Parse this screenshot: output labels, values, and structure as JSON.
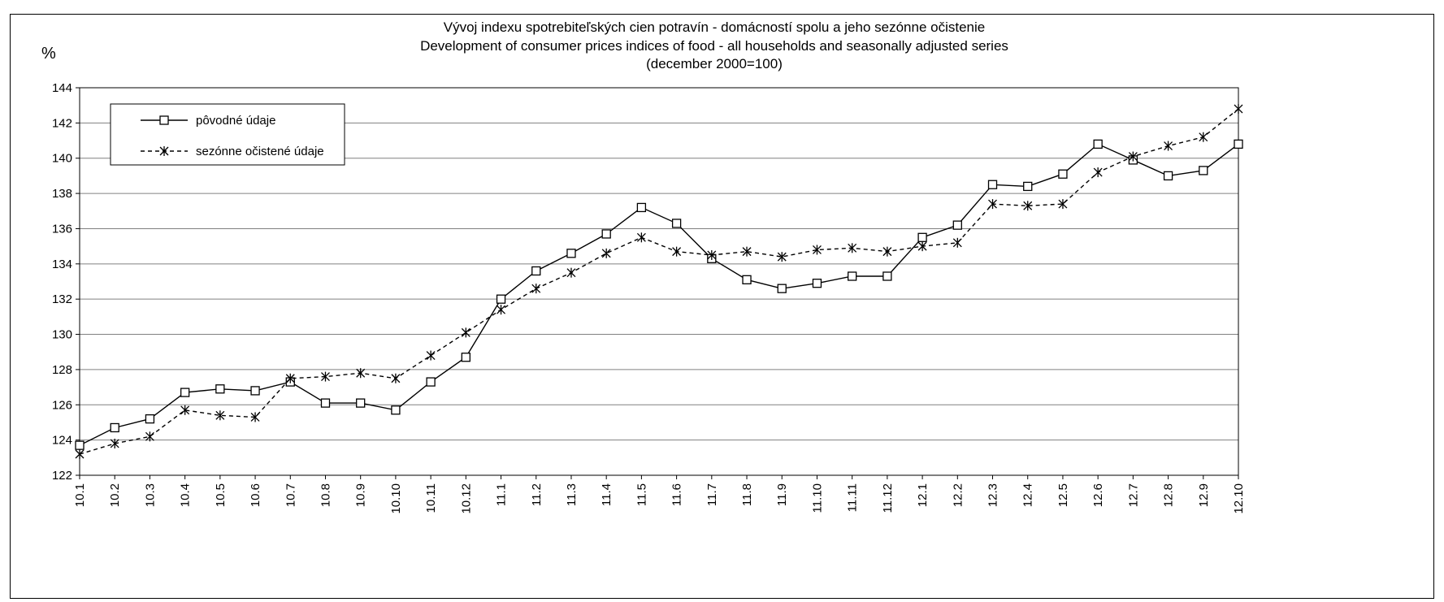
{
  "chart_data": {
    "type": "line",
    "title": [
      "Vývoj indexu spotrebiteľských cien potravín - domácností spolu a jeho sezónne očistenie",
      "Development of consumer prices indices of food - all households and seasonally adjusted series",
      "(december 2000=100)"
    ],
    "ylabel": "%",
    "xlabel": "",
    "ylim": [
      122,
      144
    ],
    "ystep": 2,
    "grid": true,
    "legend_position": "top-left",
    "categories": [
      "10.1",
      "10.2",
      "10.3",
      "10.4",
      "10.5",
      "10.6",
      "10.7",
      "10.8",
      "10.9",
      "10.10",
      "10.11",
      "10.12",
      "11.1",
      "11.2",
      "11.3",
      "11.4",
      "11.5",
      "11.6",
      "11.7",
      "11.8",
      "11.9",
      "11.10",
      "11.11",
      "11.12",
      "12.1",
      "12.2",
      "12.3",
      "12.4",
      "12.5",
      "12.6",
      "12.7",
      "12.8",
      "12.9",
      "12.10"
    ],
    "series": [
      {
        "name": "pôvodné údaje",
        "line": "solid",
        "marker": "square",
        "values": [
          123.7,
          124.7,
          125.2,
          126.7,
          126.9,
          126.8,
          127.3,
          126.1,
          126.1,
          125.7,
          127.3,
          128.7,
          132.0,
          133.6,
          134.6,
          135.7,
          137.2,
          136.3,
          134.3,
          133.1,
          132.6,
          132.9,
          133.3,
          133.3,
          135.5,
          136.2,
          138.5,
          138.4,
          139.1,
          140.8,
          139.9,
          139.0,
          139.3,
          140.8
        ]
      },
      {
        "name": "sezónne očistené údaje",
        "line": "dashed",
        "marker": "asterisk",
        "values": [
          123.2,
          123.8,
          124.2,
          125.7,
          125.4,
          125.3,
          127.5,
          127.6,
          127.8,
          127.5,
          128.8,
          130.1,
          131.4,
          132.6,
          133.5,
          134.6,
          135.5,
          134.7,
          134.5,
          134.7,
          134.4,
          134.8,
          134.9,
          134.7,
          135.0,
          135.2,
          137.4,
          137.3,
          137.4,
          139.2,
          140.1,
          140.7,
          141.2,
          142.8
        ]
      }
    ]
  }
}
